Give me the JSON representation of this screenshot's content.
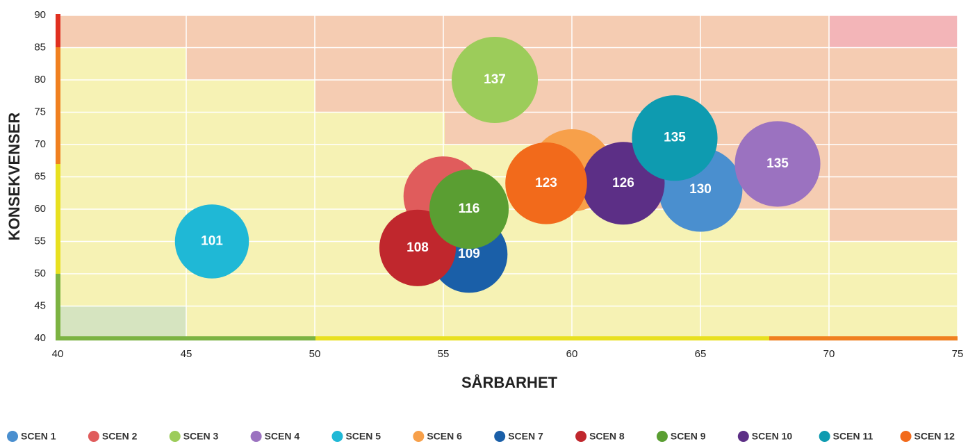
{
  "chart_data": {
    "type": "bubble",
    "xlabel": "SÅRBARHET",
    "ylabel": "KONSEKVENSER",
    "xlim": [
      40,
      75
    ],
    "xticks": [
      40,
      45,
      50,
      55,
      60,
      65,
      70,
      75
    ],
    "ylim": [
      40,
      90
    ],
    "yticks": [
      40,
      45,
      50,
      55,
      60,
      65,
      70,
      75,
      80,
      85,
      90
    ],
    "grid": true,
    "legend": "bottom",
    "series": [
      {
        "name": "SCEN 1",
        "color": "#4a8fcf",
        "x": [
          65
        ],
        "values": [
          63
        ],
        "sizes": [
          130
        ]
      },
      {
        "name": "SCEN 2",
        "color": "#e05c5c",
        "x": [
          55
        ],
        "values": [
          62
        ],
        "sizes": [
          117
        ]
      },
      {
        "name": "SCEN 3",
        "color": "#9ccc5a",
        "x": [
          57
        ],
        "values": [
          80
        ],
        "sizes": [
          137
        ]
      },
      {
        "name": "SCEN 4",
        "color": "#9b72c0",
        "x": [
          68
        ],
        "values": [
          67
        ],
        "sizes": [
          135
        ]
      },
      {
        "name": "SCEN 5",
        "color": "#1fb8d6",
        "x": [
          46
        ],
        "values": [
          55
        ],
        "sizes": [
          101
        ]
      },
      {
        "name": "SCEN 6",
        "color": "#f7a04a",
        "x": [
          60
        ],
        "values": [
          66
        ],
        "sizes": [
          125
        ]
      },
      {
        "name": "SCEN 7",
        "color": "#1a5fa8",
        "x": [
          56
        ],
        "values": [
          53
        ],
        "sizes": [
          109
        ]
      },
      {
        "name": "SCEN 8",
        "color": "#c0272d",
        "x": [
          54
        ],
        "values": [
          54
        ],
        "sizes": [
          108
        ]
      },
      {
        "name": "SCEN 9",
        "color": "#5a9e32",
        "x": [
          56
        ],
        "values": [
          60
        ],
        "sizes": [
          116
        ]
      },
      {
        "name": "SCEN 10",
        "color": "#5c2f86",
        "x": [
          62
        ],
        "values": [
          64
        ],
        "sizes": [
          126
        ]
      },
      {
        "name": "SCEN 11",
        "color": "#0e9bb0",
        "x": [
          64
        ],
        "values": [
          71
        ],
        "sizes": [
          135
        ]
      },
      {
        "name": "SCEN 12",
        "color": "#f26a1b",
        "x": [
          59
        ],
        "values": [
          64
        ],
        "sizes": [
          123
        ]
      }
    ]
  }
}
